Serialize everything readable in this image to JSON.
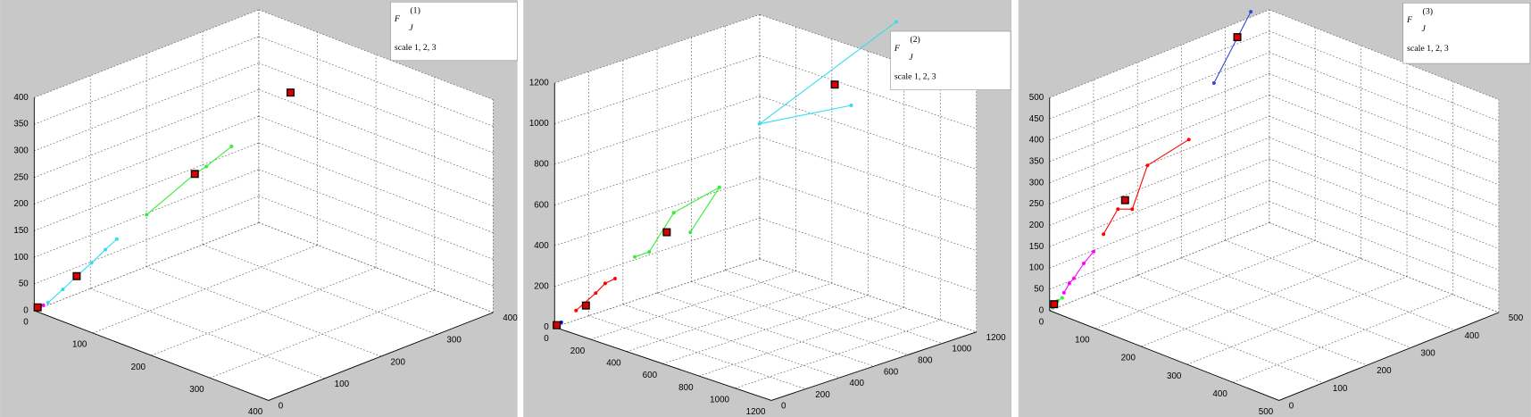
{
  "chart_data": [
    {
      "type": "scatter3d",
      "legend": {
        "symbol": "F",
        "sub": "J",
        "sup": "(1)",
        "text": "scale 1, 2, 3"
      },
      "xlim": [
        0,
        400
      ],
      "ylim": [
        0,
        400
      ],
      "zlim": [
        0,
        400
      ],
      "xticks": [
        0,
        100,
        200,
        300,
        400
      ],
      "yticks": [
        0,
        100,
        200,
        300,
        400
      ],
      "zticks": [
        0,
        50,
        100,
        150,
        200,
        250,
        300,
        350,
        400
      ],
      "grid": true,
      "series": [
        {
          "color": "#ff00ff",
          "marker": "dot",
          "line": true,
          "x": [
            2,
            5,
            8
          ],
          "y": [
            2,
            5,
            8
          ],
          "z": [
            3,
            7,
            10
          ]
        },
        {
          "color": "#33ddee",
          "marker": "dot",
          "line": true,
          "x": [
            12,
            25,
            37,
            50,
            62,
            72
          ],
          "y": [
            12,
            25,
            37,
            50,
            62,
            72
          ],
          "z": [
            15,
            40,
            65,
            90,
            115,
            135
          ]
        },
        {
          "color": "#33ee33",
          "marker": "dot",
          "line": true,
          "x": [
            98,
            140,
            150,
            172
          ],
          "y": [
            98,
            140,
            150,
            172
          ],
          "z": [
            181,
            258,
            272,
            310
          ]
        },
        {
          "color": "#dd0000",
          "marker": "square",
          "line": false,
          "x": [
            3,
            37,
            140,
            150
          ],
          "y": [
            3,
            37,
            140,
            300
          ],
          "z": [
            6,
            65,
            258,
            349
          ]
        }
      ]
    },
    {
      "type": "scatter3d",
      "legend": {
        "symbol": "F",
        "sub": "J",
        "sup": "(2)",
        "text": "scale 1, 2, 3"
      },
      "xlim": [
        0,
        1200
      ],
      "ylim": [
        0,
        1200
      ],
      "zlim": [
        0,
        1200
      ],
      "xticks": [
        0,
        200,
        400,
        600,
        800,
        1000,
        1200
      ],
      "yticks": [
        0,
        200,
        400,
        600,
        800,
        1000,
        1200
      ],
      "zticks": [
        0,
        200,
        400,
        600,
        800,
        1000,
        1200
      ],
      "grid": true,
      "series": [
        {
          "color": "#0000ff",
          "marker": "dot",
          "line": true,
          "x": [
            2,
            6,
            19
          ],
          "y": [
            2,
            6,
            19
          ],
          "z": [
            3,
            10,
            24
          ]
        },
        {
          "color": "#ff0000",
          "marker": "dot",
          "line": true,
          "x": [
            61,
            117,
            144,
            172
          ],
          "y": [
            61,
            117,
            144,
            172
          ],
          "z": [
            83,
            170,
            218,
            242
          ]
        },
        {
          "color": "#33ee33",
          "marker": "dot",
          "line": true,
          "x": [
            228,
            269,
            339,
            469,
            386
          ],
          "y": [
            228,
            269,
            339,
            469,
            386
          ],
          "z": [
            350,
            375,
            569,
            697,
            474
          ]
        },
        {
          "color": "#33ddee",
          "marker": "dot",
          "line": true,
          "x": [
            972,
            583,
            844
          ],
          "y": [
            972,
            583,
            844
          ],
          "z": [
            1520,
            1011,
            1107
          ]
        },
        {
          "color": "#dd0000",
          "marker": "square",
          "line": false,
          "x": [
            6,
            89,
            319,
            797
          ],
          "y": [
            6,
            89,
            319,
            797
          ],
          "z": [
            10,
            108,
            473,
            1208
          ]
        }
      ]
    },
    {
      "type": "scatter3d",
      "legend": {
        "symbol": "F",
        "sub": "J",
        "sup": "(3)",
        "text": "scale 1, 2, 3"
      },
      "xlim": [
        0,
        500
      ],
      "ylim": [
        0,
        500
      ],
      "zlim": [
        0,
        500
      ],
      "xticks": [
        0,
        100,
        200,
        300,
        400,
        500
      ],
      "yticks": [
        0,
        100,
        200,
        300,
        400,
        500
      ],
      "zticks": [
        0,
        50,
        100,
        150,
        200,
        250,
        300,
        350,
        400,
        450,
        500
      ],
      "grid": true,
      "series": [
        {
          "color": "#33ee33",
          "marker": "dot",
          "line": true,
          "x": [
            3,
            9,
            14
          ],
          "y": [
            3,
            9,
            14
          ],
          "z": [
            7,
            23,
            30
          ]
        },
        {
          "color": "#ff00ff",
          "marker": "dot",
          "line": true,
          "x": [
            16,
            22,
            27,
            38,
            49
          ],
          "y": [
            16,
            22,
            27,
            38,
            49
          ],
          "z": [
            42,
            64,
            76,
            111,
            139
          ]
        },
        {
          "color": "#ff0000",
          "marker": "dot",
          "line": true,
          "x": [
            60,
            76,
            92,
            109,
            155
          ],
          "y": [
            60,
            76,
            92,
            109,
            155
          ],
          "z": [
            180,
            239,
            239,
            342,
            403
          ]
        },
        {
          "color": "#3344dd",
          "marker": "dot",
          "line": true,
          "x": [
            183,
            224
          ],
          "y": [
            183,
            224
          ],
          "z": [
            536,
            704
          ]
        },
        {
          "color": "#dd0000",
          "marker": "square",
          "line": false,
          "x": [
            5,
            84,
            209
          ],
          "y": [
            5,
            84,
            209
          ],
          "z": [
            15,
            260,
            644
          ]
        }
      ]
    }
  ]
}
